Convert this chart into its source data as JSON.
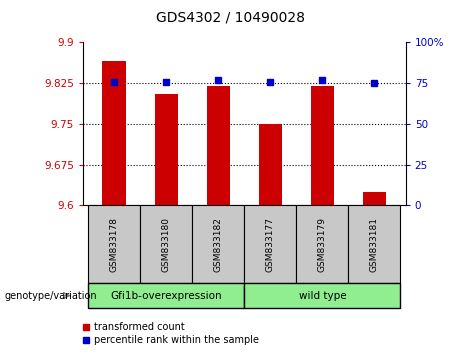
{
  "title": "GDS4302 / 10490028",
  "samples": [
    "GSM833178",
    "GSM833180",
    "GSM833182",
    "GSM833177",
    "GSM833179",
    "GSM833181"
  ],
  "bar_values": [
    9.865,
    9.805,
    9.82,
    9.75,
    9.82,
    9.625
  ],
  "percentile_values": [
    76,
    76,
    77,
    76,
    77,
    75
  ],
  "ylim_left": [
    9.6,
    9.9
  ],
  "ylim_right": [
    0,
    100
  ],
  "yticks_left": [
    9.6,
    9.675,
    9.75,
    9.825,
    9.9
  ],
  "yticks_right": [
    0,
    25,
    50,
    75,
    100
  ],
  "ytick_labels_left": [
    "9.6",
    "9.675",
    "9.75",
    "9.825",
    "9.9"
  ],
  "ytick_labels_right": [
    "0",
    "25",
    "50",
    "75",
    "100%"
  ],
  "bar_color": "#cc0000",
  "percentile_color": "#0000cc",
  "bar_bottom": 9.6,
  "groups": [
    {
      "label": "Gfi1b-overexpression",
      "indices": [
        0,
        1,
        2
      ],
      "color": "#90ee90"
    },
    {
      "label": "wild type",
      "indices": [
        3,
        4,
        5
      ],
      "color": "#90ee90"
    }
  ],
  "group_label_prefix": "genotype/variation",
  "legend_items": [
    {
      "label": "transformed count",
      "color": "#cc0000"
    },
    {
      "label": "percentile rank within the sample",
      "color": "#0000cc"
    }
  ],
  "tick_color_left": "#cc0000",
  "tick_color_right": "#0000cc",
  "sample_box_color": "#c8c8c8",
  "plot_bg": "#ffffff"
}
